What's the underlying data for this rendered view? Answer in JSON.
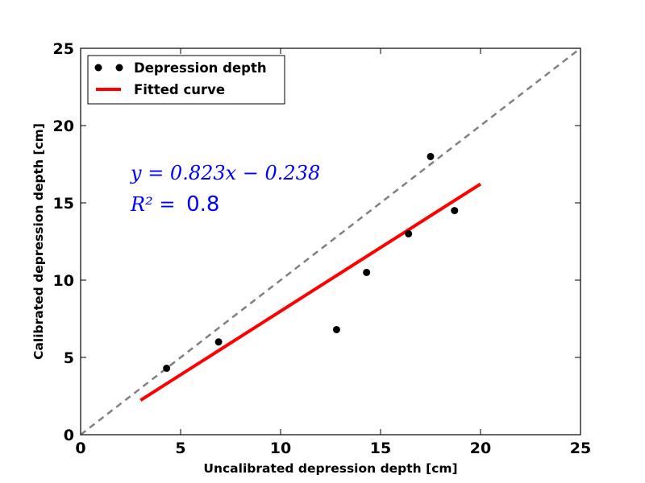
{
  "chart_data": {
    "type": "scatter",
    "xlabel": "Uncalibrated depression depth [cm]",
    "ylabel": "Calibrated depression depth [cm]",
    "xlim": [
      0,
      25
    ],
    "ylim": [
      0,
      25
    ],
    "xticks": [
      "0",
      "5",
      "10",
      "15",
      "20",
      "25"
    ],
    "yticks": [
      "0",
      "5",
      "10",
      "15",
      "20",
      "25"
    ],
    "grid": false,
    "legend_position": "top-left",
    "series": [
      {
        "name": "Depression depth",
        "kind": "scatter",
        "color": "#000000",
        "points": [
          {
            "x": 4.3,
            "y": 4.3
          },
          {
            "x": 6.9,
            "y": 6.0
          },
          {
            "x": 12.8,
            "y": 6.8
          },
          {
            "x": 14.3,
            "y": 10.5
          },
          {
            "x": 16.4,
            "y": 13.0
          },
          {
            "x": 17.5,
            "y": 18.0
          },
          {
            "x": 18.7,
            "y": 14.5
          }
        ]
      },
      {
        "name": "Fitted curve",
        "kind": "line",
        "color": "#ff0000",
        "points": [
          {
            "x": 3.0,
            "y": 2.231
          },
          {
            "x": 20.0,
            "y": 16.222
          }
        ]
      }
    ],
    "reference_line": {
      "style": "dashed",
      "color": "#808080",
      "points": [
        {
          "x": 0,
          "y": 0
        },
        {
          "x": 25,
          "y": 25
        }
      ]
    },
    "annotations": {
      "equation": "y = 0.823x − 0.238",
      "r2_label": "R² = ",
      "r2_value": "0.8",
      "color": "#0000ff"
    }
  }
}
